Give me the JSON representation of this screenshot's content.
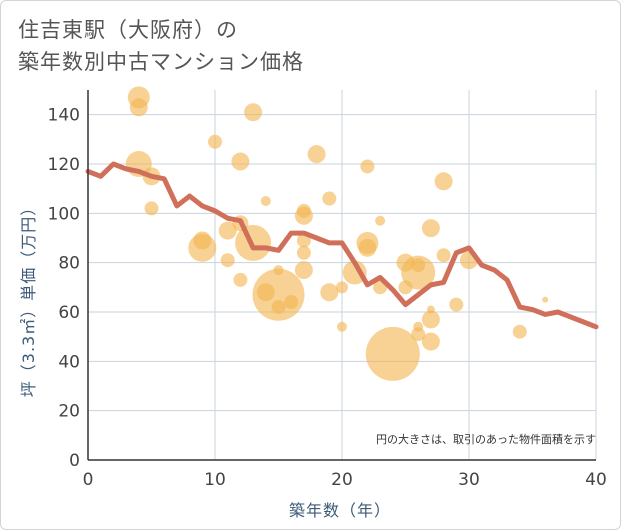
{
  "chart_data": {
    "type": "scatter",
    "title_line1": "住吉東駅（大阪府）の",
    "title_line2": "築年数別中古マンション価格",
    "xlabel": "築年数（年）",
    "ylabel": "坪（3.3㎡）単価（万円）",
    "note": "円の大きさは、取引のあった物件面積を示す",
    "xlim": [
      0,
      40
    ],
    "ylim": [
      0,
      150
    ],
    "x_ticks": [
      0,
      10,
      20,
      30,
      40
    ],
    "y_ticks": [
      0,
      20,
      40,
      60,
      80,
      100,
      120,
      140
    ],
    "grid": true,
    "colors": {
      "bubble": "#f3b44f",
      "line": "#d0705a",
      "grid": "#c8d3dd",
      "axis": "#333333"
    },
    "bubbles": [
      {
        "x": 4,
        "y": 147,
        "s": 11
      },
      {
        "x": 4,
        "y": 143,
        "s": 9
      },
      {
        "x": 4,
        "y": 120,
        "s": 13
      },
      {
        "x": 5,
        "y": 115,
        "s": 9
      },
      {
        "x": 5,
        "y": 102,
        "s": 7
      },
      {
        "x": 9,
        "y": 86,
        "s": 14
      },
      {
        "x": 9,
        "y": 89,
        "s": 9
      },
      {
        "x": 10,
        "y": 129,
        "s": 7
      },
      {
        "x": 11,
        "y": 93,
        "s": 9
      },
      {
        "x": 11,
        "y": 81,
        "s": 7
      },
      {
        "x": 12,
        "y": 121,
        "s": 9
      },
      {
        "x": 12,
        "y": 96,
        "s": 8
      },
      {
        "x": 12,
        "y": 73,
        "s": 7
      },
      {
        "x": 13,
        "y": 141,
        "s": 9
      },
      {
        "x": 13,
        "y": 88,
        "s": 18
      },
      {
        "x": 14,
        "y": 105,
        "s": 5
      },
      {
        "x": 14,
        "y": 68,
        "s": 9
      },
      {
        "x": 15,
        "y": 67,
        "s": 26
      },
      {
        "x": 15,
        "y": 77,
        "s": 5
      },
      {
        "x": 15,
        "y": 62,
        "s": 7
      },
      {
        "x": 16,
        "y": 64,
        "s": 7
      },
      {
        "x": 17,
        "y": 101,
        "s": 7
      },
      {
        "x": 17,
        "y": 99,
        "s": 9
      },
      {
        "x": 17,
        "y": 89,
        "s": 7
      },
      {
        "x": 17,
        "y": 84,
        "s": 7
      },
      {
        "x": 17,
        "y": 77,
        "s": 9
      },
      {
        "x": 18,
        "y": 124,
        "s": 9
      },
      {
        "x": 19,
        "y": 106,
        "s": 7
      },
      {
        "x": 19,
        "y": 68,
        "s": 9
      },
      {
        "x": 20,
        "y": 70,
        "s": 6
      },
      {
        "x": 20,
        "y": 54,
        "s": 5
      },
      {
        "x": 21,
        "y": 76,
        "s": 12
      },
      {
        "x": 22,
        "y": 119,
        "s": 7
      },
      {
        "x": 22,
        "y": 88,
        "s": 11
      },
      {
        "x": 22,
        "y": 86,
        "s": 9
      },
      {
        "x": 23,
        "y": 97,
        "s": 5
      },
      {
        "x": 23,
        "y": 70,
        "s": 7
      },
      {
        "x": 24,
        "y": 43,
        "s": 27
      },
      {
        "x": 25,
        "y": 80,
        "s": 9
      },
      {
        "x": 25,
        "y": 70,
        "s": 7
      },
      {
        "x": 26,
        "y": 76,
        "s": 17
      },
      {
        "x": 26,
        "y": 79,
        "s": 7
      },
      {
        "x": 26,
        "y": 54,
        "s": 5
      },
      {
        "x": 26,
        "y": 51,
        "s": 7
      },
      {
        "x": 27,
        "y": 94,
        "s": 9
      },
      {
        "x": 27,
        "y": 61,
        "s": 4
      },
      {
        "x": 27,
        "y": 57,
        "s": 9
      },
      {
        "x": 27,
        "y": 48,
        "s": 9
      },
      {
        "x": 28,
        "y": 113,
        "s": 9
      },
      {
        "x": 28,
        "y": 83,
        "s": 7
      },
      {
        "x": 29,
        "y": 63,
        "s": 7
      },
      {
        "x": 30,
        "y": 81,
        "s": 9
      },
      {
        "x": 34,
        "y": 52,
        "s": 7
      },
      {
        "x": 36,
        "y": 65,
        "s": 3
      }
    ],
    "trend_x": [
      0,
      1,
      2,
      3,
      4,
      5,
      6,
      7,
      8,
      9,
      10,
      11,
      12,
      13,
      14,
      15,
      16,
      17,
      18,
      19,
      20,
      21,
      22,
      23,
      24,
      25,
      26,
      27,
      28,
      29,
      30,
      31,
      32,
      33,
      34,
      35,
      36,
      37,
      38,
      39,
      40
    ],
    "trend_y": [
      117,
      115,
      120,
      118,
      117,
      115,
      114,
      103,
      107,
      103,
      101,
      98,
      97,
      86,
      86,
      85,
      92,
      92,
      90,
      88,
      88,
      80,
      71,
      74,
      69,
      63,
      67,
      71,
      72,
      84,
      86,
      79,
      77,
      73,
      62,
      61,
      59,
      60,
      58,
      56,
      54
    ]
  }
}
